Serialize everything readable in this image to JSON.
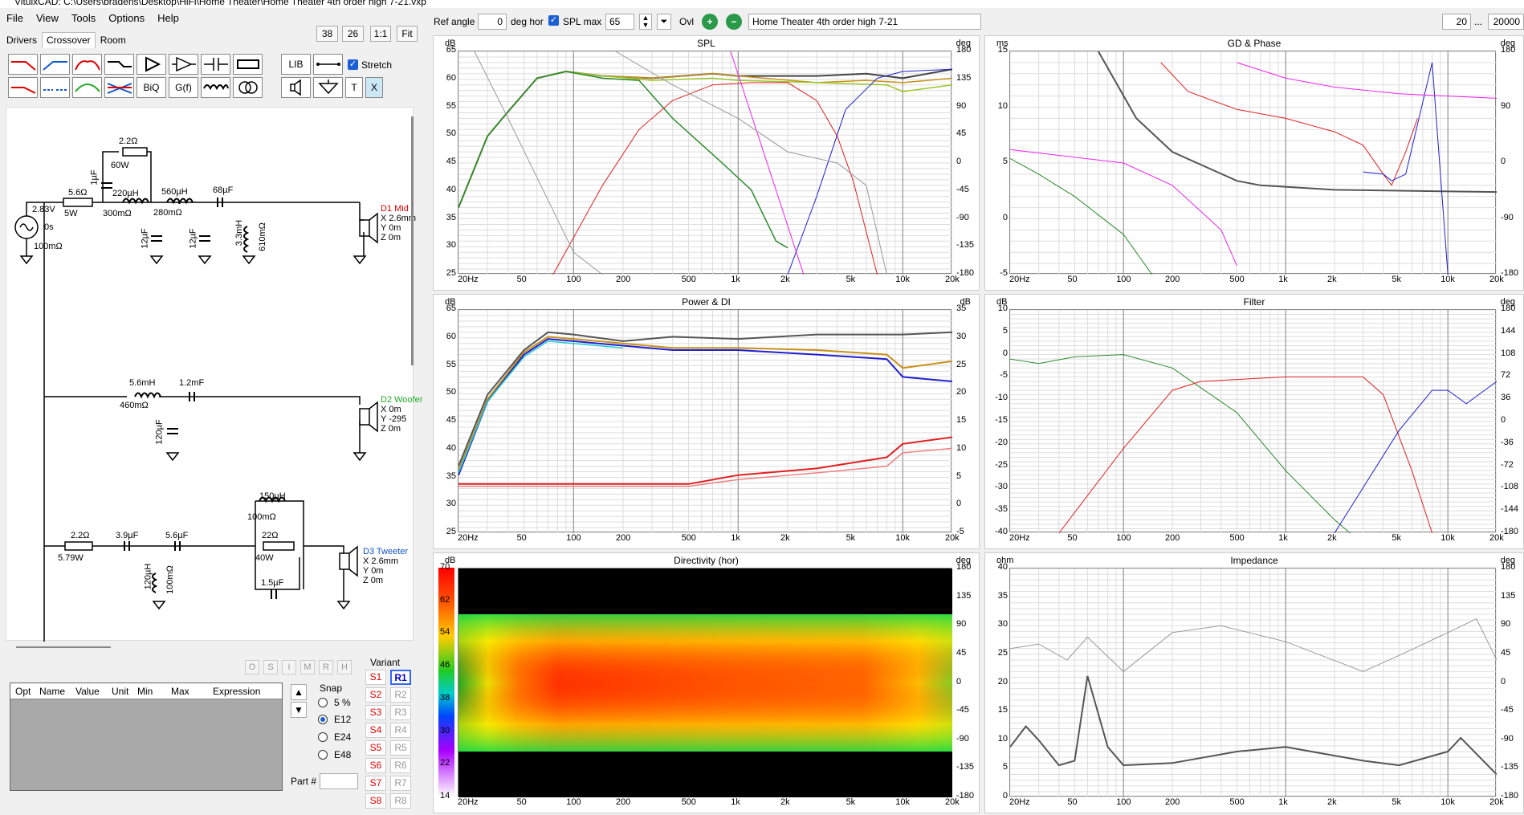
{
  "window": {
    "title": "VituixCAD: C:\\Users\\bradens\\Desktop\\HiFi\\Home Theater\\Home Theater 4th order high 7-21.vxp"
  },
  "menu": [
    "File",
    "View",
    "Tools",
    "Options",
    "Help"
  ],
  "tabs": [
    "Drivers",
    "Crossover",
    "Room"
  ],
  "crossover_toolbar": {
    "zoom_a": "38",
    "zoom_b": "26",
    "one_to_one": "1:1",
    "fit": "Fit",
    "lib": "LIB",
    "biq": "BiQ",
    "gf": "G(f)",
    "t": "T",
    "x": "X",
    "stretch_label": "Stretch"
  },
  "schematic": {
    "source": {
      "voltage": "2.83V",
      "delay": "0s",
      "resistance": "100mΩ"
    },
    "mid_branch": [
      "2.2Ω",
      "60W",
      "1µF",
      "5.6Ω",
      "5W",
      "220µH",
      "300mΩ",
      "12µF",
      "560µH",
      "280mΩ",
      "12µF",
      "68µF",
      "3.3mH",
      "610mΩ"
    ],
    "mid_driver": {
      "name": "D1 Mid",
      "x": "X 2.6mm",
      "y": "Y 0m",
      "z": "Z 0m"
    },
    "woofer_branch": [
      "5.6mH",
      "460mΩ",
      "1.2mF",
      "120µF"
    ],
    "woofer_driver": {
      "name": "D2 Woofer",
      "x": "X 0m",
      "y": "Y -295",
      "z": "Z 0m"
    },
    "tweeter_branch": [
      "2.2Ω",
      "5.79W",
      "3.9µF",
      "5.6µF",
      "150µH",
      "100mΩ",
      "22Ω",
      "40W",
      "1.5µF",
      "120µH",
      "100mΩ"
    ],
    "tweeter_driver": {
      "name": "D3 Tweeter",
      "x": "X 2.6mm",
      "y": "Y 0m",
      "z": "Z 0m"
    }
  },
  "params_table": {
    "columns": [
      "Opt",
      "Name",
      "Value",
      "Unit",
      "Min",
      "Max",
      "Expression"
    ]
  },
  "ost_buttons": [
    "O",
    "S",
    "I",
    "M",
    "R",
    "H"
  ],
  "snap": {
    "label": "Snap",
    "options": [
      "5 %",
      "E12",
      "E24",
      "E48"
    ],
    "selected": "E12"
  },
  "part_label": "Part #",
  "variant": {
    "label": "Variant",
    "s": [
      "S1",
      "S2",
      "S3",
      "S4",
      "S5",
      "S6",
      "S7",
      "S8"
    ],
    "r": [
      "R1",
      "R2",
      "R3",
      "R4",
      "R5",
      "R6",
      "R7",
      "R8"
    ],
    "selected": "R1"
  },
  "topbar": {
    "ref_angle_label": "Ref angle",
    "ref_angle": "0",
    "deg_hor": "deg hor",
    "spl_max_label": "SPL max",
    "spl_max": "65",
    "ovl": "Ovl",
    "project_name": "Home Theater 4th order high 7-21",
    "fmin": "20",
    "ellipsis": "...",
    "fmax": "20000"
  },
  "freq_ticks": [
    "20Hz",
    "50",
    "100",
    "200",
    "500",
    "1k",
    "2k",
    "5k",
    "10k",
    "20k"
  ],
  "panels": {
    "spl": {
      "title": "SPL",
      "left_unit": "dB",
      "right_unit": "deg",
      "left_ticks": [
        "65",
        "60",
        "55",
        "50",
        "45",
        "40",
        "35",
        "30",
        "25"
      ],
      "right_ticks": [
        "180",
        "135",
        "90",
        "45",
        "0",
        "-45",
        "-90",
        "-135",
        "-180"
      ]
    },
    "gd": {
      "title": "GD & Phase",
      "left_unit": "ms",
      "right_unit": "deg",
      "left_ticks": [
        "15",
        "10",
        "5",
        "0",
        "-5"
      ],
      "right_ticks": [
        "180",
        "90",
        "0",
        "-90",
        "-180"
      ]
    },
    "power": {
      "title": "Power & DI",
      "left_unit": "dB",
      "right_unit": "dB",
      "left_ticks": [
        "65",
        "60",
        "55",
        "50",
        "45",
        "40",
        "35",
        "30",
        "25"
      ],
      "right_ticks": [
        "35",
        "30",
        "25",
        "20",
        "15",
        "10",
        "5",
        "0",
        "-5"
      ]
    },
    "filter": {
      "title": "Filter",
      "left_unit": "dB",
      "right_unit": "deg",
      "left_ticks": [
        "10",
        "5",
        "0",
        "-5",
        "-10",
        "-15",
        "-20",
        "-25",
        "-30",
        "-35",
        "-40"
      ],
      "right_ticks": [
        "180",
        "144",
        "108",
        "72",
        "36",
        "0",
        "-36",
        "-72",
        "-108",
        "-144",
        "-180"
      ]
    },
    "directivity": {
      "title": "Directivity (hor)",
      "left_unit": "dB",
      "right_unit": "deg",
      "scale_ticks": [
        "70",
        "62",
        "54",
        "46",
        "38",
        "30",
        "22",
        "14"
      ],
      "right_ticks": [
        "180",
        "135",
        "90",
        "45",
        "0",
        "-45",
        "-90",
        "-135",
        "-180"
      ]
    },
    "impedance": {
      "title": "Impedance",
      "left_unit": "ohm",
      "right_unit": "deg",
      "left_ticks": [
        "40",
        "35",
        "30",
        "25",
        "20",
        "15",
        "10",
        "5",
        "0"
      ],
      "right_ticks": [
        "180",
        "135",
        "90",
        "45",
        "0",
        "-45",
        "-90",
        "-135",
        "-180"
      ]
    }
  }
}
